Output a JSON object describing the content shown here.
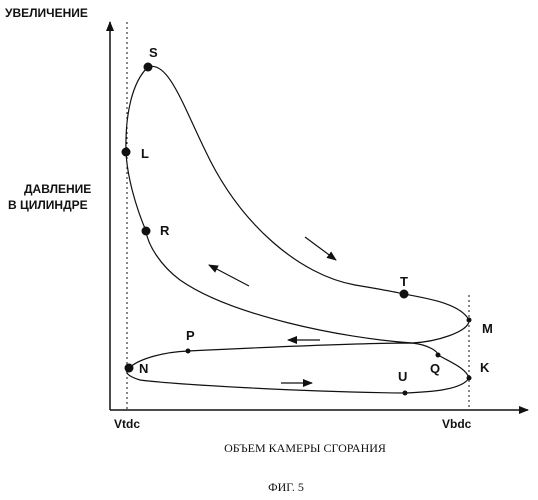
{
  "axes": {
    "y_label_top": "УВЕЛИЧЕНИЕ",
    "y_label_line1": "ДАВЛЕНИЕ",
    "y_label_line2": "В ЦИЛИНДРЕ",
    "x_label": "ОБЪЕМ КАМЕРЫ СГОРАНИЯ",
    "x_tick_left": "Vtdc",
    "x_tick_right": "Vbdc"
  },
  "caption": "ФИГ. 5",
  "points": {
    "S": "S",
    "L": "L",
    "R": "R",
    "T": "T",
    "M": "M",
    "P": "P",
    "N": "N",
    "Q": "Q",
    "K": "K",
    "U": "U"
  },
  "colors": {
    "ink": "#111111",
    "background": "#ffffff"
  }
}
